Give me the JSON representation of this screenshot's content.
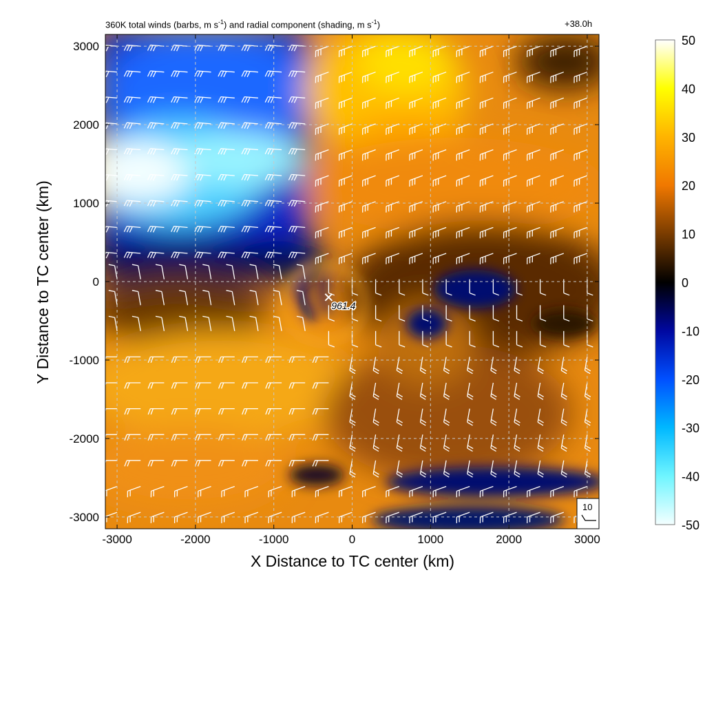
{
  "header": {
    "title_part1": "360K total winds (barbs, m s",
    "title_sup1": "-1",
    "title_part2": ") and radial component (shading, m s",
    "title_sup2": "-1",
    "title_part3": ")",
    "forecast_time": "+38.0h"
  },
  "chart_data": {
    "type": "heatmap",
    "xlabel": "X Distance to TC center (km)",
    "ylabel": "Y Distance to TC center (km)",
    "xlim": [
      -3150,
      3150
    ],
    "ylim": [
      -3150,
      3150
    ],
    "x_ticks": [
      -3000,
      -2000,
      -1000,
      0,
      1000,
      2000,
      3000
    ],
    "y_ticks": [
      -3000,
      -2000,
      -1000,
      0,
      1000,
      2000,
      3000
    ],
    "grid": true,
    "colorbar": {
      "range": [
        -50,
        50
      ],
      "ticks": [
        50,
        40,
        30,
        20,
        10,
        0,
        -10,
        -20,
        -30,
        -40,
        -50
      ],
      "stops": [
        {
          "value": -50,
          "color": "#f4ffff"
        },
        {
          "value": -40,
          "color": "#6ff5ff"
        },
        {
          "value": -30,
          "color": "#00b8ff"
        },
        {
          "value": -20,
          "color": "#0050ff"
        },
        {
          "value": -10,
          "color": "#0008a0"
        },
        {
          "value": 0,
          "color": "#000000"
        },
        {
          "value": 10,
          "color": "#7a3c00"
        },
        {
          "value": 20,
          "color": "#f07800"
        },
        {
          "value": 30,
          "color": "#ffb400"
        },
        {
          "value": 40,
          "color": "#ffff00"
        },
        {
          "value": 50,
          "color": "#ffffff"
        }
      ]
    },
    "center_marker": {
      "x": -300,
      "y": -200,
      "label": "961.4"
    },
    "reference_barb": {
      "label": "10",
      "speed": 10
    }
  }
}
